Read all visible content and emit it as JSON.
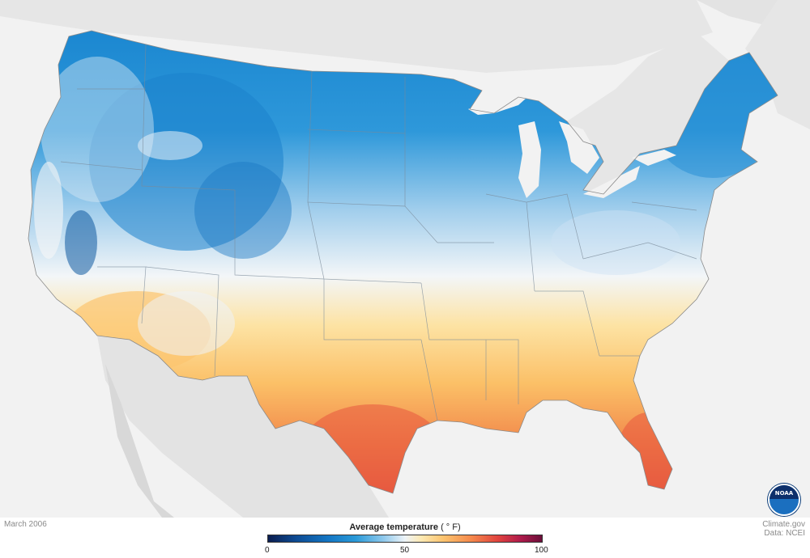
{
  "map": {
    "period": "March 2006",
    "legend": {
      "title": "Average temperature",
      "unit": "( ° F)",
      "ticks": [
        "0",
        "50",
        "100"
      ],
      "range": [
        0,
        100
      ]
    },
    "credits": [
      "Climate.gov",
      "Data: NCEI"
    ],
    "logo": "NOAA",
    "colors": {
      "cold": "#1476c4",
      "neutral": "#eef4f8",
      "warm": "#fcc46f",
      "hot": "#e0433f",
      "land_outside": "#e0e0e0",
      "water": "#f2f2f2"
    },
    "icons": [
      "noaa-logo-icon"
    ]
  }
}
